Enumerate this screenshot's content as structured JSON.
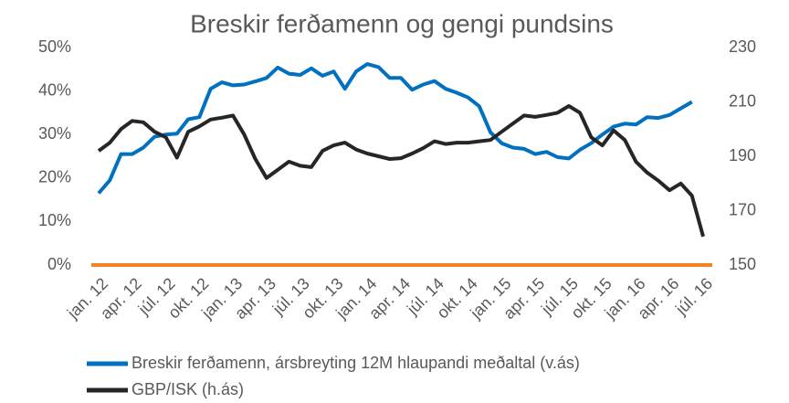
{
  "chart_data": {
    "type": "line",
    "title": "Breskir ferðamenn og gengi pundsins",
    "categories": [
      "jan. 12",
      null,
      null,
      "apr. 12",
      null,
      null,
      "júl. 12",
      null,
      null,
      "okt. 12",
      null,
      null,
      "jan. 13",
      null,
      null,
      "apr. 13",
      null,
      null,
      "júl. 13",
      null,
      null,
      "okt. 13",
      null,
      null,
      "jan. 14",
      null,
      null,
      "apr. 14",
      null,
      null,
      "júl. 14",
      null,
      null,
      "okt. 14",
      null,
      null,
      "jan. 15",
      null,
      null,
      "apr. 15",
      null,
      null,
      "júl. 15",
      null,
      null,
      "okt. 15",
      null,
      null,
      "jan. 16",
      null,
      null,
      "apr. 16",
      null,
      null,
      "júl. 16"
    ],
    "series": [
      {
        "name": "Breskir ferðamenn, ársbreyting 12M hlaupandi meðaltal (v.ás)",
        "color": "#0070c0",
        "axis": "y",
        "values": [
          16.5,
          19.5,
          25.5,
          25.5,
          27,
          29.5,
          30,
          30.2,
          33.5,
          34,
          40.5,
          42,
          41.3,
          41.5,
          42.2,
          43,
          45.4,
          44,
          43.7,
          45.2,
          43.5,
          44.5,
          40.5,
          44.5,
          46.2,
          45.5,
          43,
          43,
          40.3,
          41.5,
          42.3,
          40.5,
          39.6,
          38.5,
          36.5,
          30.5,
          28,
          27,
          26.7,
          25.5,
          26,
          24.8,
          24.5,
          26.5,
          28,
          30,
          31.8,
          32.5,
          32.3,
          34,
          33.8,
          34.5,
          36,
          37.5,
          null
        ]
      },
      {
        "name": "GBP/ISK (h.ás)",
        "color": "#262626",
        "axis": "y2",
        "values": [
          192,
          195,
          200,
          203,
          202.5,
          199,
          197,
          189.5,
          199,
          201,
          203.5,
          204.2,
          205,
          198,
          189,
          182,
          185,
          188,
          186.5,
          186,
          192,
          194,
          195,
          192.5,
          191,
          190,
          189,
          189.3,
          191,
          193,
          195.5,
          194.5,
          195,
          195,
          195.5,
          196,
          199,
          202,
          205,
          204.5,
          205.2,
          206,
          208.5,
          206,
          197,
          194,
          199.5,
          196,
          188,
          184,
          181,
          177.5,
          180,
          175.5,
          160.5
        ]
      }
    ],
    "ylim": [
      0,
      50
    ],
    "yticks": [
      {
        "value": 0,
        "label": "0%"
      },
      {
        "value": 10,
        "label": "10%"
      },
      {
        "value": 20,
        "label": "20%"
      },
      {
        "value": 30,
        "label": "30%"
      },
      {
        "value": 40,
        "label": "40%"
      },
      {
        "value": 50,
        "label": "50%"
      }
    ],
    "y2lim": [
      150,
      230
    ],
    "y2ticks": [
      150,
      170,
      190,
      210,
      230
    ],
    "baseline_color": "#f58220"
  }
}
